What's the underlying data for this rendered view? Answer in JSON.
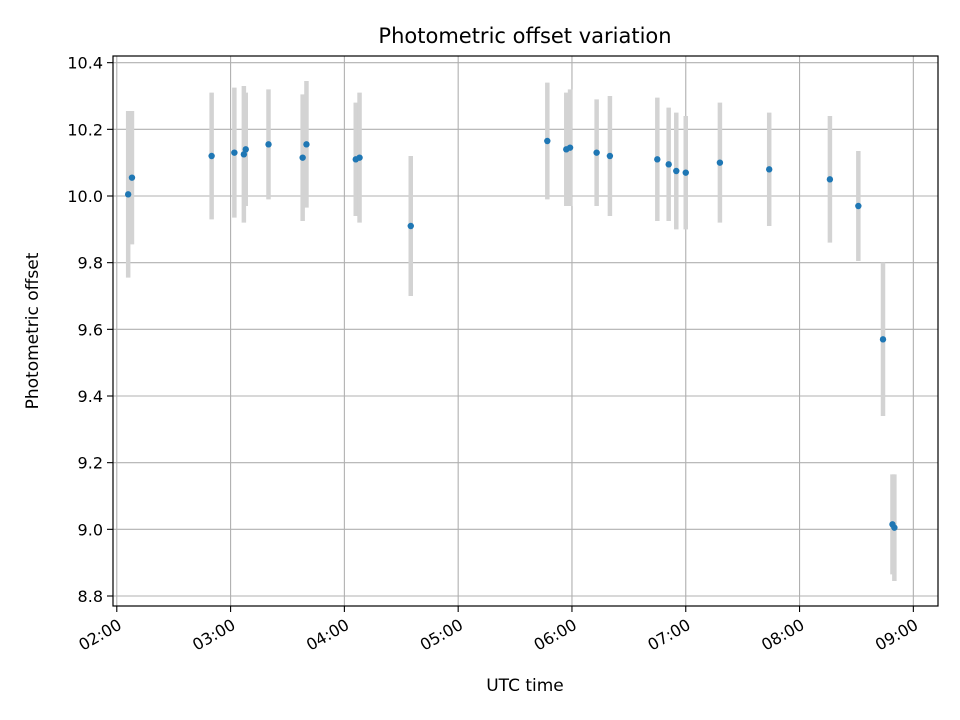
{
  "chart_data": {
    "type": "scatter",
    "title": "Photometric offset variation",
    "xlabel": "UTC time",
    "ylabel": "Photometric offset",
    "x_ticks": [
      "02:00",
      "03:00",
      "04:00",
      "05:00",
      "06:00",
      "07:00",
      "08:00",
      "09:00"
    ],
    "y_ticks": [
      "8.8",
      "9.0",
      "9.2",
      "9.4",
      "9.6",
      "9.8",
      "10.0",
      "10.2",
      "10.4"
    ],
    "xlim": [
      "01:58",
      "09:13"
    ],
    "ylim": [
      8.77,
      10.42
    ],
    "grid": true,
    "point_color": "#1f77b4",
    "errorbar_color": "#d3d3d3",
    "points": [
      {
        "time": "02:06",
        "value": 10.005,
        "err": 0.25
      },
      {
        "time": "02:08",
        "value": 10.055,
        "err": 0.2
      },
      {
        "time": "02:50",
        "value": 10.12,
        "err": 0.19
      },
      {
        "time": "03:02",
        "value": 10.13,
        "err": 0.195
      },
      {
        "time": "03:07",
        "value": 10.125,
        "err": 0.205
      },
      {
        "time": "03:08",
        "value": 10.14,
        "err": 0.17
      },
      {
        "time": "03:20",
        "value": 10.155,
        "err": 0.165
      },
      {
        "time": "03:38",
        "value": 10.115,
        "err": 0.19
      },
      {
        "time": "03:40",
        "value": 10.155,
        "err": 0.19
      },
      {
        "time": "04:06",
        "value": 10.11,
        "err": 0.17
      },
      {
        "time": "04:08",
        "value": 10.115,
        "err": 0.195
      },
      {
        "time": "04:35",
        "value": 9.91,
        "err": 0.21
      },
      {
        "time": "05:47",
        "value": 10.165,
        "err": 0.175
      },
      {
        "time": "05:57",
        "value": 10.14,
        "err": 0.17
      },
      {
        "time": "05:59",
        "value": 10.145,
        "err": 0.175
      },
      {
        "time": "06:13",
        "value": 10.13,
        "err": 0.16
      },
      {
        "time": "06:20",
        "value": 10.12,
        "err": 0.18
      },
      {
        "time": "06:45",
        "value": 10.11,
        "err": 0.185
      },
      {
        "time": "06:51",
        "value": 10.095,
        "err": 0.17
      },
      {
        "time": "06:55",
        "value": 10.075,
        "err": 0.175
      },
      {
        "time": "07:00",
        "value": 10.07,
        "err": 0.17
      },
      {
        "time": "07:18",
        "value": 10.1,
        "err": 0.18
      },
      {
        "time": "07:44",
        "value": 10.08,
        "err": 0.17
      },
      {
        "time": "08:16",
        "value": 10.05,
        "err": 0.19
      },
      {
        "time": "08:31",
        "value": 9.97,
        "err": 0.165
      },
      {
        "time": "08:44",
        "value": 9.57,
        "err": 0.23
      },
      {
        "time": "08:49",
        "value": 9.015,
        "err": 0.15
      },
      {
        "time": "08:50",
        "value": 9.005,
        "err": 0.16
      }
    ]
  }
}
